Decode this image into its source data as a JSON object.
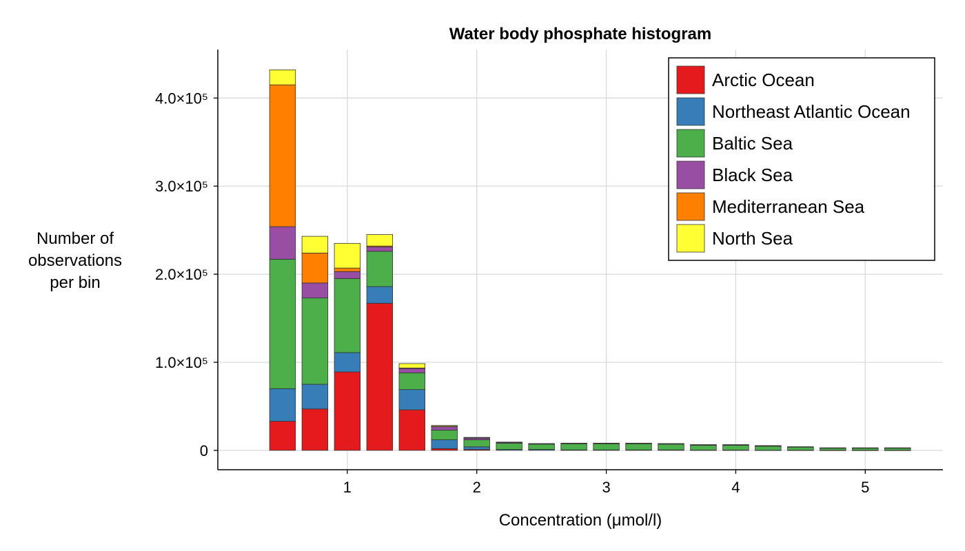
{
  "chart_data": {
    "type": "bar",
    "stacked": true,
    "title": "Water body phosphate histogram",
    "xlabel": "Concentration (μmol/l)",
    "ylabel_lines": [
      "Number of",
      "observations",
      "per bin"
    ],
    "x_ticks": [
      "1",
      "2",
      "3",
      "4",
      "5"
    ],
    "x_tick_values": [
      1,
      2,
      3,
      4,
      5
    ],
    "y_ticks": [
      "0",
      "1.0×10⁵",
      "2.0×10⁵",
      "3.0×10⁵",
      "4.0×10⁵"
    ],
    "y_tick_values": [
      0,
      100000,
      200000,
      300000,
      400000
    ],
    "xlim": [
      0.0,
      5.6
    ],
    "ylim": [
      -22000,
      455000
    ],
    "grid": true,
    "legend_position": "top-right",
    "bin_centers": [
      0.5,
      0.75,
      1.0,
      1.25,
      1.5,
      1.75,
      2.0,
      2.25,
      2.5,
      2.75,
      3.0,
      3.25,
      3.5,
      3.75,
      4.0,
      4.25,
      4.5,
      4.75,
      5.0,
      5.25
    ],
    "bin_width": 0.25,
    "series": [
      {
        "name": "Arctic Ocean",
        "color": "#e41a1c",
        "values": [
          33000,
          47000,
          89000,
          167000,
          46000,
          2000,
          1000,
          0,
          0,
          0,
          0,
          0,
          0,
          0,
          0,
          0,
          0,
          0,
          0,
          0
        ]
      },
      {
        "name": "Northeast Atlantic Ocean",
        "color": "#377eb8",
        "values": [
          37000,
          28000,
          22000,
          19000,
          23000,
          10000,
          3000,
          1000,
          1000,
          500,
          500,
          500,
          500,
          300,
          300,
          200,
          200,
          100,
          100,
          100
        ]
      },
      {
        "name": "Baltic Sea",
        "color": "#4daf4a",
        "values": [
          147000,
          98000,
          84000,
          40000,
          19000,
          11000,
          8000,
          7000,
          6000,
          7000,
          7000,
          7000,
          6500,
          5500,
          5500,
          4500,
          3500,
          2500,
          2500,
          2500
        ]
      },
      {
        "name": "Black Sea",
        "color": "#984ea3",
        "values": [
          37000,
          17000,
          8000,
          5000,
          5000,
          4000,
          2000,
          1000,
          500,
          500,
          500,
          500,
          500,
          500,
          500,
          500,
          300,
          200,
          200,
          200
        ]
      },
      {
        "name": "Mediterranean Sea",
        "color": "#ff7f00",
        "values": [
          161000,
          34000,
          4000,
          1000,
          500,
          300,
          200,
          100,
          0,
          0,
          0,
          0,
          0,
          0,
          0,
          0,
          0,
          0,
          0,
          0
        ]
      },
      {
        "name": "North Sea",
        "color": "#ffff33",
        "values": [
          17000,
          19000,
          28000,
          13000,
          5000,
          1000,
          500,
          300,
          200,
          200,
          200,
          200,
          200,
          200,
          200,
          200,
          100,
          100,
          100,
          100
        ]
      }
    ]
  }
}
